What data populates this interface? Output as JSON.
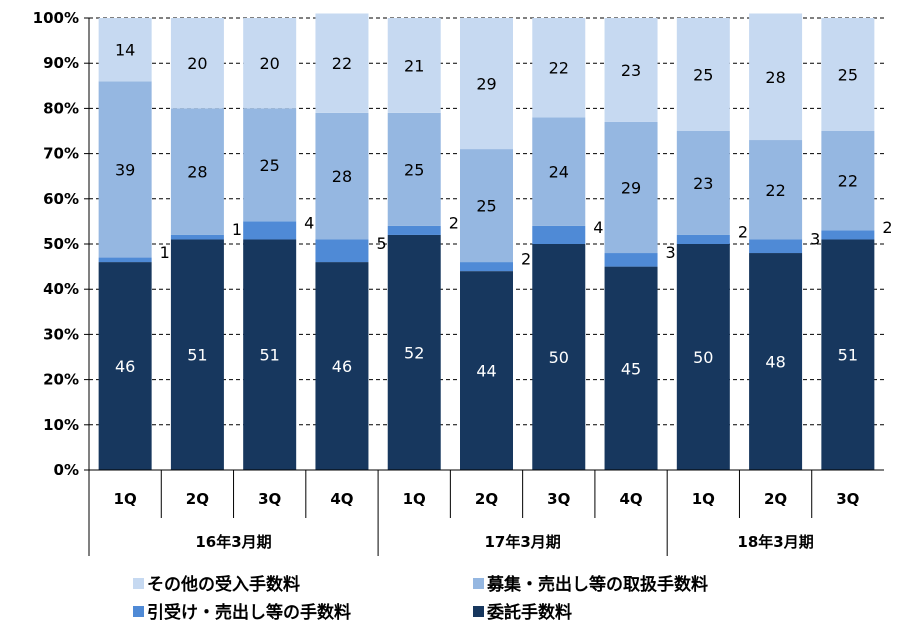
{
  "chart_data": {
    "type": "bar",
    "stacked": true,
    "percent": true,
    "categories": [
      "1Q",
      "2Q",
      "3Q",
      "4Q",
      "1Q",
      "2Q",
      "3Q",
      "4Q",
      "1Q",
      "2Q",
      "3Q"
    ],
    "groups": [
      {
        "label": "16年3月期",
        "count": 4
      },
      {
        "label": "17年3月期",
        "count": 4
      },
      {
        "label": "18年3月期",
        "count": 3
      }
    ],
    "series": [
      {
        "name": "委託手数料",
        "color": "#17375e",
        "label_color": "#ffffff",
        "label_pos": "inside",
        "values": [
          46,
          51,
          51,
          46,
          52,
          44,
          50,
          45,
          50,
          48,
          51
        ]
      },
      {
        "name": "引受け・売出し等の手数料",
        "color": "#4f8ad6",
        "label_color": "#000000",
        "label_pos": "right",
        "values": [
          1,
          1,
          4,
          5,
          2,
          2,
          4,
          3,
          2,
          3,
          2
        ]
      },
      {
        "name": "募集・売出し等の取扱手数料",
        "color": "#95b7e1",
        "label_color": "#000000",
        "label_pos": "inside",
        "values": [
          39,
          28,
          25,
          28,
          25,
          25,
          24,
          29,
          23,
          22,
          22
        ]
      },
      {
        "name": "その他の受入手数料",
        "color": "#c6d9f1",
        "label_color": "#000000",
        "label_pos": "inside",
        "values": [
          14,
          20,
          20,
          22,
          21,
          29,
          22,
          23,
          25,
          28,
          25
        ]
      }
    ],
    "y_ticks": [
      "0%",
      "10%",
      "20%",
      "30%",
      "40%",
      "50%",
      "60%",
      "70%",
      "80%",
      "90%",
      "100%"
    ],
    "ylim": [
      0,
      100
    ],
    "grid": "dashed horizontal",
    "legend": {
      "position": "bottom",
      "order": [
        "その他の受入手数料",
        "募集・売出し等の取扱手数料",
        "引受け・売出し等の手数料",
        "委託手数料"
      ]
    }
  }
}
